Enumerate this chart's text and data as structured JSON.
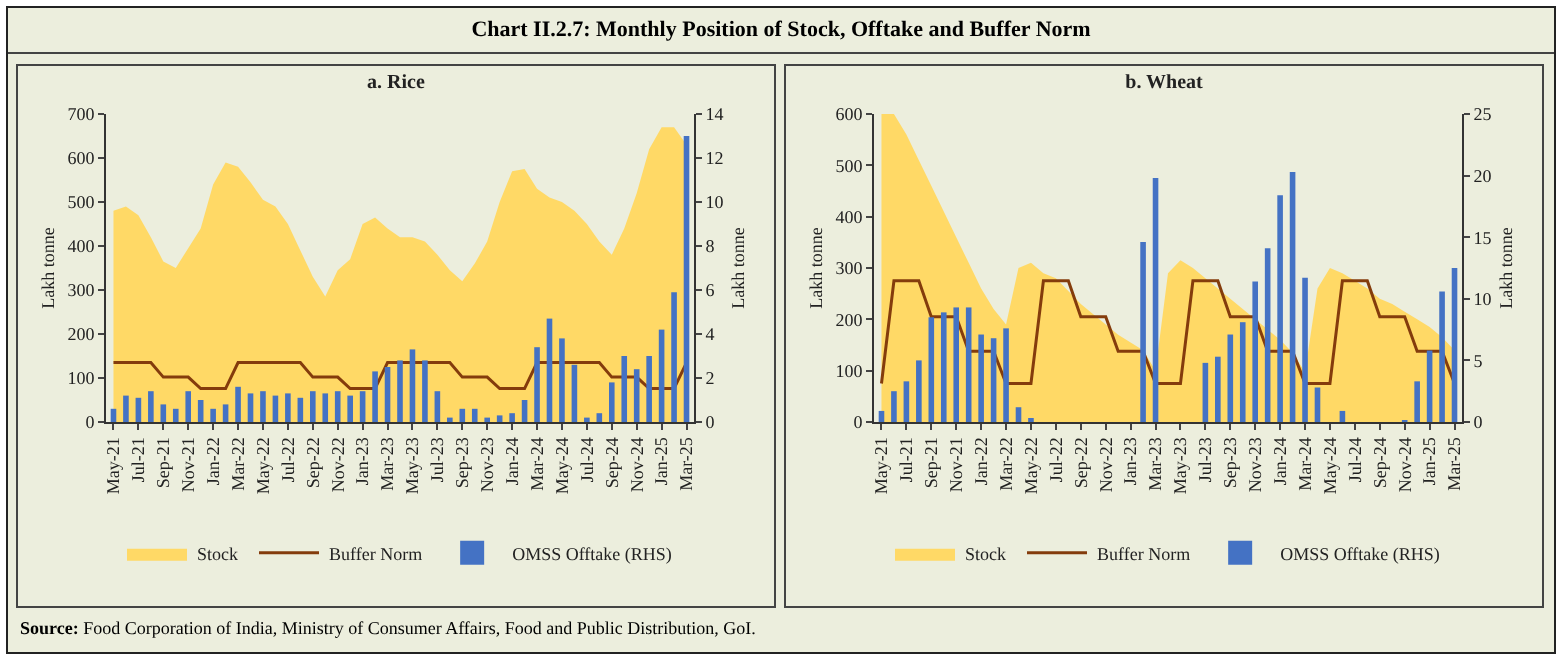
{
  "chart_data": [
    {
      "type": "bar",
      "title": "a. Rice",
      "ylabel": "Lakh tonne",
      "y2label": "Lakh tonne",
      "annotations": [
        "Chart II.2.7: Monthly Position of Stock, Offtake and Buffer Norm",
        "Source: Food Corporation of India, Ministry of Consumer Affairs, Food and Public Distribution, GoI."
      ],
      "categories": [
        "May-21",
        null,
        "Jul-21",
        null,
        "Sep-21",
        null,
        "Nov-21",
        null,
        "Jan-22",
        null,
        "Mar-22",
        null,
        "May-22",
        null,
        "Jul-22",
        null,
        "Sep-22",
        null,
        "Nov-22",
        null,
        "Jan-23",
        null,
        "Mar-23",
        null,
        "May-23",
        null,
        "Jul-23",
        null,
        "Sep-23",
        null,
        "Nov-23",
        null,
        "Jan-24",
        null,
        "Mar-24",
        null,
        "May-24",
        null,
        "Jul-24",
        null,
        "Sep-24",
        null,
        "Nov-24",
        null,
        "Jan-25",
        null,
        "Mar-25"
      ],
      "series": [
        {
          "name": "Stock",
          "type": "area",
          "color": "#ffd966",
          "values": [
            480,
            490,
            470,
            420,
            365,
            350,
            395,
            440,
            540,
            590,
            580,
            545,
            505,
            490,
            450,
            390,
            330,
            285,
            345,
            370,
            450,
            465,
            440,
            420,
            420,
            410,
            380,
            345,
            320,
            360,
            410,
            500,
            570,
            575,
            530,
            510,
            500,
            480,
            450,
            410,
            380,
            440,
            520,
            620,
            670,
            670,
            630
          ]
        },
        {
          "name": "Buffer Norm",
          "type": "line",
          "color": "#843c0c",
          "values": [
            135,
            135,
            135,
            135,
            102,
            102,
            102,
            76,
            76,
            76,
            135,
            135,
            135,
            135,
            135,
            135,
            102,
            102,
            102,
            76,
            76,
            76,
            135,
            135,
            135,
            135,
            135,
            135,
            102,
            102,
            102,
            76,
            76,
            76,
            135,
            135,
            135,
            135,
            135,
            135,
            102,
            102,
            102,
            76,
            76,
            76,
            135
          ]
        },
        {
          "name": "OMSS Offtake (RHS)",
          "axis": "y2",
          "color": "#4472c4",
          "values": [
            0.6,
            1.2,
            1.1,
            1.4,
            0.8,
            0.6,
            1.4,
            1.0,
            0.6,
            0.8,
            1.6,
            1.3,
            1.4,
            1.2,
            1.3,
            1.1,
            1.4,
            1.3,
            1.4,
            1.2,
            1.4,
            2.3,
            2.5,
            2.8,
            3.3,
            2.8,
            1.4,
            0.2,
            0.6,
            0.6,
            0.2,
            0.3,
            0.4,
            1.0,
            3.4,
            4.7,
            3.8,
            2.6,
            0.2,
            0.4,
            1.8,
            3.0,
            2.4,
            3.0,
            4.2,
            5.9,
            13.0
          ]
        }
      ],
      "ylim": [
        0,
        700
      ],
      "yticks": [
        0,
        100,
        200,
        300,
        400,
        500,
        600,
        700
      ],
      "y2lim": [
        0,
        14
      ],
      "y2ticks": [
        0,
        2,
        4,
        6,
        8,
        10,
        12,
        14
      ],
      "legend": "bottom",
      "grid": false
    },
    {
      "type": "bar",
      "title": "b. Wheat",
      "ylabel": "Lakh tonne",
      "y2label": "Lakh tonne",
      "categories": [
        "May-21",
        null,
        "Jul-21",
        null,
        "Sep-21",
        null,
        "Nov-21",
        null,
        "Jan-22",
        null,
        "Mar-22",
        null,
        "May-22",
        null,
        "Jul-22",
        null,
        "Sep-22",
        null,
        "Nov-22",
        null,
        "Jan-23",
        null,
        "Mar-23",
        null,
        "May-23",
        null,
        "Jul-23",
        null,
        "Sep-23",
        null,
        "Nov-23",
        null,
        "Jan-24",
        null,
        "Mar-24",
        null,
        "May-24",
        null,
        "Jul-24",
        null,
        "Sep-24",
        null,
        "Nov-24",
        null,
        "Jan-25",
        null,
        "Mar-25"
      ],
      "series": [
        {
          "name": "Stock",
          "type": "area",
          "color": "#ffd966",
          "values": [
            600,
            600,
            560,
            510,
            460,
            410,
            360,
            310,
            260,
            220,
            190,
            300,
            310,
            290,
            280,
            255,
            230,
            210,
            190,
            170,
            155,
            140,
            100,
            290,
            315,
            300,
            280,
            260,
            240,
            220,
            200,
            180,
            160,
            135,
            97,
            260,
            300,
            290,
            275,
            260,
            240,
            230,
            215,
            200,
            185,
            165,
            140
          ]
        },
        {
          "name": "Buffer Norm",
          "type": "line",
          "color": "#843c0c",
          "values": [
            75,
            275,
            275,
            275,
            205,
            205,
            205,
            138,
            138,
            138,
            75,
            75,
            75,
            275,
            275,
            275,
            205,
            205,
            205,
            138,
            138,
            138,
            75,
            75,
            75,
            275,
            275,
            275,
            205,
            205,
            205,
            138,
            138,
            138,
            75,
            75,
            75,
            275,
            275,
            275,
            205,
            205,
            205,
            138,
            138,
            138,
            75
          ]
        },
        {
          "name": "OMSS Offtake (RHS)",
          "axis": "y2",
          "color": "#4472c4",
          "values": [
            0.9,
            2.5,
            3.3,
            5.0,
            8.5,
            8.9,
            9.3,
            9.3,
            7.1,
            6.8,
            7.6,
            1.2,
            0.3,
            0,
            0,
            0,
            0,
            0,
            0,
            0,
            0,
            14.6,
            19.8,
            0,
            0,
            0,
            4.8,
            5.3,
            7.1,
            8.1,
            11.4,
            14.1,
            18.4,
            20.3,
            11.7,
            2.8,
            0,
            0.9,
            0,
            0,
            0,
            0,
            0.1,
            3.3,
            5.8,
            10.6,
            12.5
          ]
        }
      ],
      "ylim": [
        0,
        600
      ],
      "yticks": [
        0,
        100,
        200,
        300,
        400,
        500,
        600
      ],
      "y2lim": [
        0,
        25
      ],
      "y2ticks": [
        0,
        5,
        10,
        15,
        20,
        25
      ],
      "legend": "bottom",
      "grid": false
    }
  ]
}
